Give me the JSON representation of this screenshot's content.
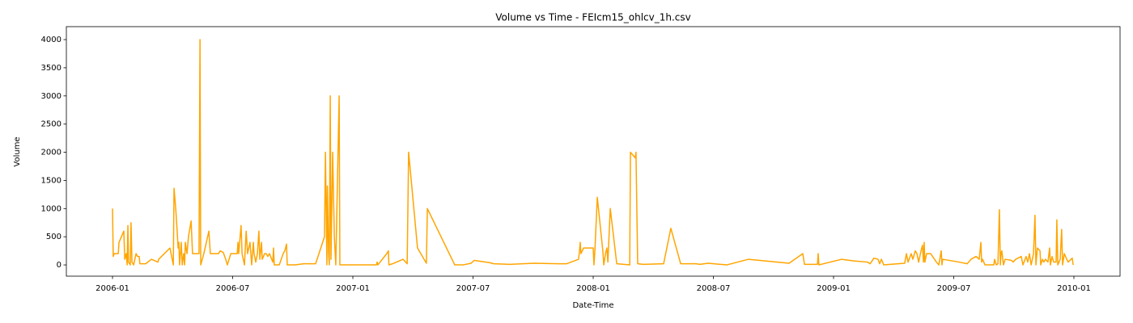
{
  "chart_data": {
    "type": "line",
    "title": "Volume vs Time - FEIcm15_ohlcv_1h.csv",
    "x_label": "Date-Time",
    "y_label": "Volume",
    "color": "#ffa500",
    "xlim": [
      2005.808,
      2010.192
    ],
    "ylim": [
      -200,
      4230
    ],
    "xticks": [
      {
        "value": 2006.0,
        "label": "2006-01"
      },
      {
        "value": 2006.5,
        "label": "2006-07"
      },
      {
        "value": 2007.0,
        "label": "2007-01"
      },
      {
        "value": 2007.5,
        "label": "2007-07"
      },
      {
        "value": 2008.0,
        "label": "2008-01"
      },
      {
        "value": 2008.5,
        "label": "2008-07"
      },
      {
        "value": 2009.0,
        "label": "2009-01"
      },
      {
        "value": 2009.5,
        "label": "2009-07"
      },
      {
        "value": 2010.0,
        "label": "2010-01"
      }
    ],
    "yticks": [
      0,
      500,
      1000,
      1500,
      2000,
      2500,
      3000,
      3500,
      4000
    ],
    "x": [
      2006.0,
      2006.003,
      2006.007,
      2006.024,
      2006.027,
      2006.047,
      2006.051,
      2006.057,
      2006.061,
      2006.064,
      2006.067,
      2006.074,
      2006.077,
      2006.081,
      2006.088,
      2006.098,
      2006.104,
      2006.111,
      2006.114,
      2006.138,
      2006.162,
      2006.189,
      2006.192,
      2006.239,
      2006.253,
      2006.256,
      2006.263,
      2006.269,
      2006.273,
      2006.276,
      2006.279,
      2006.286,
      2006.29,
      2006.296,
      2006.3,
      2006.303,
      2006.31,
      2006.316,
      2006.327,
      2006.333,
      2006.36,
      2006.364,
      2006.367,
      2006.38,
      2006.401,
      2006.407,
      2006.441,
      2006.448,
      2006.461,
      2006.471,
      2006.478,
      2006.492,
      2006.519,
      2006.522,
      2006.525,
      2006.535,
      2006.539,
      2006.549,
      2006.556,
      2006.562,
      2006.572,
      2006.579,
      2006.586,
      2006.589,
      2006.596,
      2006.603,
      2006.609,
      2006.613,
      2006.62,
      2006.623,
      2006.633,
      2006.64,
      2006.646,
      2006.653,
      2006.667,
      2006.67,
      2006.673,
      2006.694,
      2006.71,
      2006.717,
      2006.724,
      2006.727,
      2006.761,
      2006.795,
      2006.845,
      2006.882,
      2006.886,
      2006.889,
      2006.892,
      2006.894,
      2006.899,
      2006.902,
      2006.906,
      2006.909,
      2006.916,
      2006.923,
      2006.929,
      2006.943,
      2006.946,
      2006.949,
      2007.013,
      2007.098,
      2007.101,
      2007.104,
      2007.141,
      2007.148,
      2007.15,
      2007.165,
      2007.209,
      2007.226,
      2007.232,
      2007.269,
      2007.306,
      2007.31,
      2007.424,
      2007.458,
      2007.492,
      2007.505,
      2007.569,
      2007.586,
      2007.653,
      2007.754,
      2007.855,
      2007.889,
      2007.939,
      2007.943,
      2007.946,
      2007.949,
      2007.96,
      2008.0,
      2008.003,
      2008.007,
      2008.017,
      2008.04,
      2008.044,
      2008.051,
      2008.057,
      2008.061,
      2008.071,
      2008.098,
      2008.152,
      2008.155,
      2008.175,
      2008.178,
      2008.185,
      2008.209,
      2008.293,
      2008.323,
      2008.364,
      2008.428,
      2008.444,
      2008.478,
      2008.556,
      2008.646,
      2008.815,
      2008.872,
      2008.879,
      2008.933,
      2008.936,
      2008.939,
      2009.034,
      2009.084,
      2009.141,
      2009.152,
      2009.168,
      2009.185,
      2009.192,
      2009.199,
      2009.209,
      2009.296,
      2009.303,
      2009.31,
      2009.323,
      2009.33,
      2009.34,
      2009.347,
      2009.354,
      2009.364,
      2009.37,
      2009.374,
      2009.377,
      2009.38,
      2009.387,
      2009.404,
      2009.428,
      2009.438,
      2009.448,
      2009.451,
      2009.454,
      2009.522,
      2009.556,
      2009.572,
      2009.593,
      2009.606,
      2009.613,
      2009.616,
      2009.62,
      2009.63,
      2009.667,
      2009.67,
      2009.677,
      2009.684,
      2009.69,
      2009.694,
      2009.697,
      2009.7,
      2009.707,
      2009.714,
      2009.741,
      2009.747,
      2009.758,
      2009.781,
      2009.788,
      2009.801,
      2009.808,
      2009.815,
      2009.822,
      2009.832,
      2009.838,
      2009.842,
      2009.848,
      2009.859,
      2009.862,
      2009.869,
      2009.875,
      2009.882,
      2009.892,
      2009.899,
      2009.902,
      2009.909,
      2009.916,
      2009.926,
      2009.929,
      2009.933,
      2009.943,
      2009.949,
      2009.953,
      2009.96,
      2009.97,
      2009.976,
      2009.993,
      2009.997
    ],
    "values": [
      1000,
      150,
      200,
      200,
      400,
      600,
      100,
      200,
      0,
      700,
      50,
      0,
      750,
      50,
      0,
      200,
      150,
      150,
      20,
      20,
      100,
      50,
      100,
      300,
      0,
      1360,
      1000,
      600,
      300,
      400,
      0,
      400,
      0,
      200,
      0,
      400,
      200,
      500,
      780,
      200,
      200,
      4000,
      0,
      200,
      600,
      200,
      200,
      250,
      220,
      100,
      0,
      200,
      200,
      400,
      200,
      700,
      200,
      0,
      600,
      200,
      400,
      0,
      400,
      200,
      50,
      200,
      600,
      100,
      400,
      100,
      200,
      200,
      150,
      200,
      50,
      300,
      0,
      0,
      200,
      250,
      370,
      0,
      0,
      20,
      20,
      500,
      2000,
      1000,
      0,
      1400,
      200,
      0,
      3000,
      100,
      2000,
      500,
      0,
      3000,
      0,
      0,
      0,
      0,
      50,
      0,
      200,
      250,
      0,
      20,
      100,
      20,
      2000,
      300,
      30,
      1000,
      0,
      0,
      30,
      80,
      40,
      20,
      10,
      30,
      20,
      20,
      100,
      250,
      400,
      200,
      300,
      300,
      0,
      250,
      1200,
      250,
      0,
      200,
      300,
      50,
      1000,
      20,
      0,
      2000,
      1900,
      2000,
      20,
      10,
      20,
      650,
      20,
      20,
      10,
      30,
      0,
      100,
      30,
      200,
      10,
      10,
      200,
      0,
      100,
      70,
      50,
      20,
      120,
      100,
      20,
      100,
      0,
      30,
      200,
      50,
      200,
      100,
      250,
      200,
      50,
      250,
      350,
      50,
      400,
      50,
      200,
      200,
      50,
      0,
      250,
      0,
      100,
      50,
      20,
      100,
      150,
      100,
      400,
      50,
      100,
      0,
      0,
      100,
      0,
      20,
      980,
      0,
      200,
      250,
      0,
      100,
      80,
      50,
      100,
      150,
      0,
      150,
      50,
      200,
      0,
      200,
      880,
      0,
      300,
      250,
      0,
      100,
      50,
      100,
      50,
      300,
      0,
      150,
      50,
      50,
      800,
      0,
      100,
      630,
      0,
      200,
      100,
      50,
      120,
      0
    ]
  }
}
